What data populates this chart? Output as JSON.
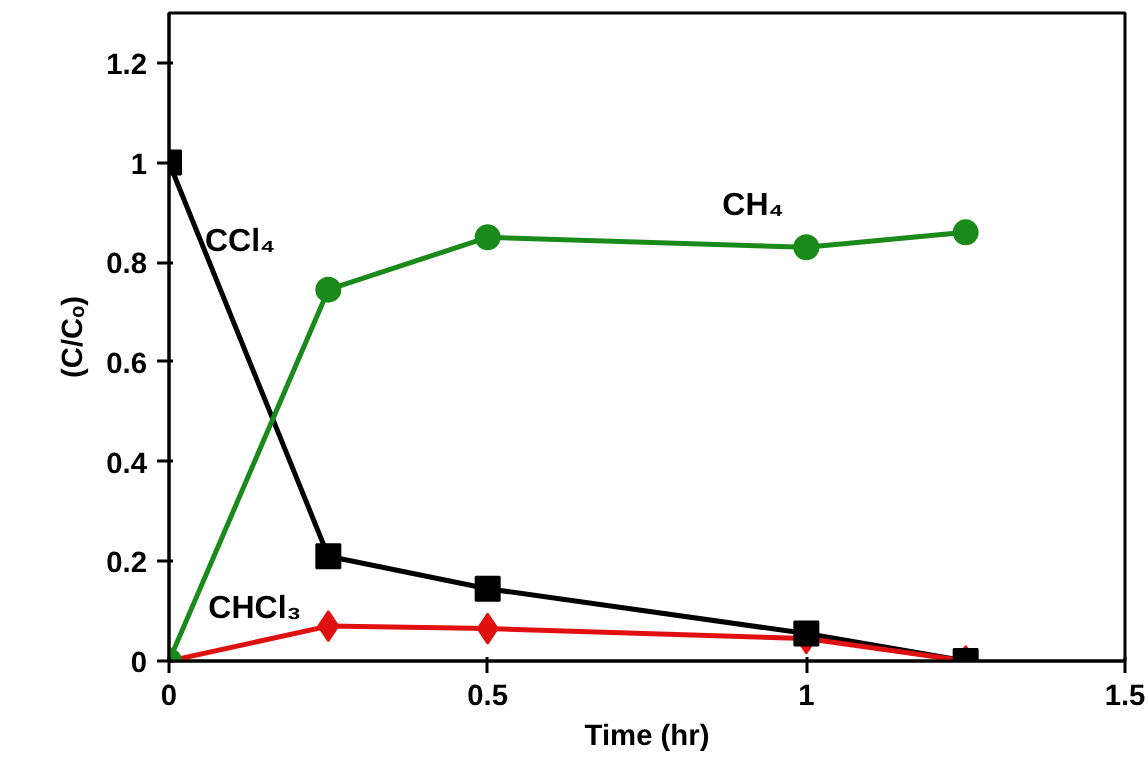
{
  "chart_data": {
    "type": "line",
    "xlabel": "Time (hr)",
    "ylabel": "(C/Cₒ)",
    "x": [
      0,
      0.25,
      0.5,
      1,
      1.25
    ],
    "series": [
      {
        "name": "CCl₄",
        "color": "#000000",
        "marker": "square",
        "values": [
          1,
          0.21,
          0.145,
          0.055,
          0
        ]
      },
      {
        "name": "CH₄",
        "color": "#1a8a1a",
        "marker": "circle",
        "values": [
          0,
          0.745,
          0.85,
          0.83,
          0.86
        ]
      },
      {
        "name": "CHCl₃",
        "color": "#e01010",
        "marker": "diamond",
        "values": [
          0,
          0.07,
          0.065,
          0.045,
          0
        ]
      }
    ],
    "xlim": [
      0,
      1.5
    ],
    "xticks": [
      0,
      0.5,
      1,
      1.5
    ],
    "ylim": [
      0,
      1.3
    ],
    "yticks": [
      0,
      0.2,
      0.4,
      0.6,
      0.8,
      1,
      1.2
    ],
    "grid": false,
    "line_style": "solid"
  }
}
